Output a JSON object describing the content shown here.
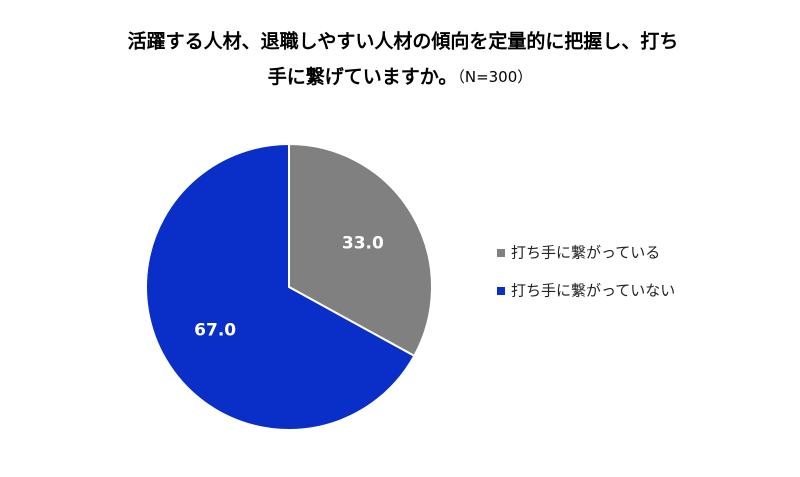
{
  "chart_data": {
    "type": "pie",
    "title": [
      "活躍する人材、退職しやすい人材の傾向を定量的に把握し、打ち",
      "手に繋げていますか。"
    ],
    "note": "（N=300）",
    "categories": [
      "打ち手に繋がっている",
      "打ち手に繋がっていない"
    ],
    "values": [
      33.0,
      67.0
    ],
    "value_labels": [
      "33.0",
      "67.0"
    ],
    "colors": [
      "#808080",
      "#0a2fc8"
    ],
    "legend": "right"
  }
}
